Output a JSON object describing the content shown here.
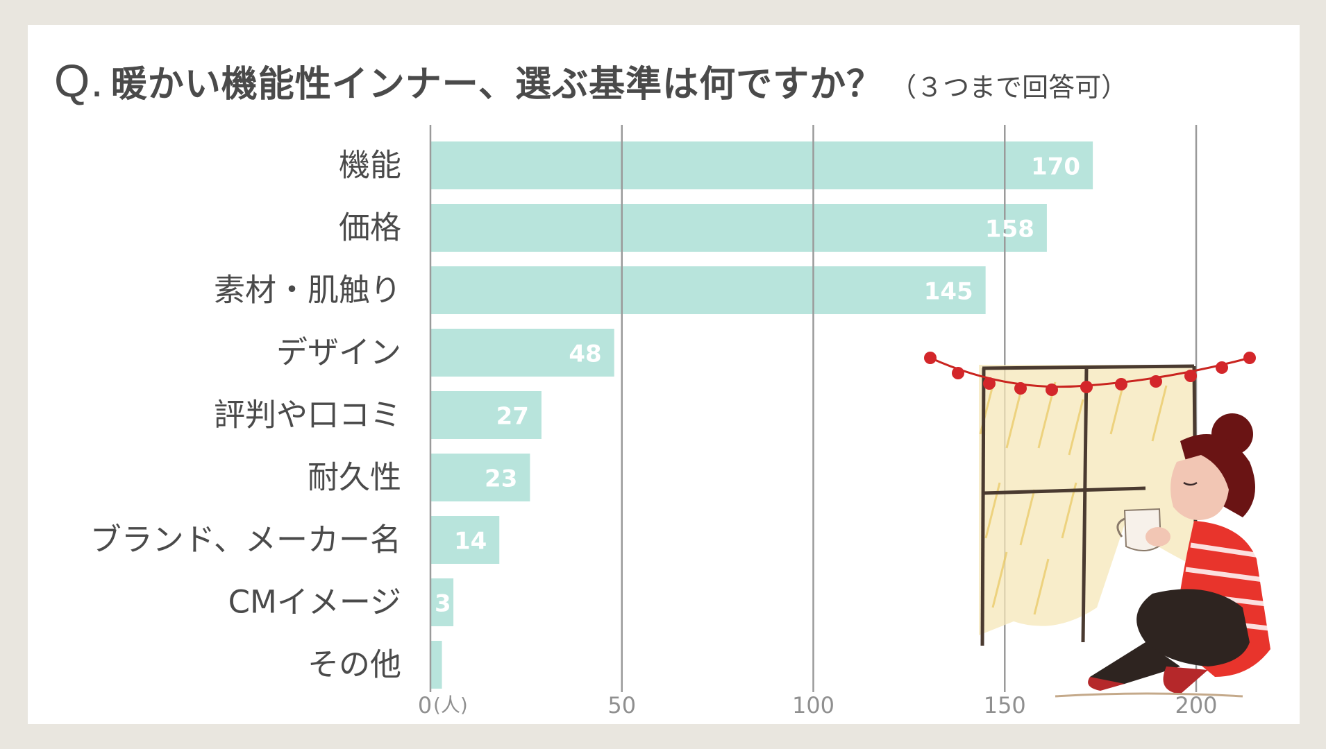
{
  "question": {
    "prefix": "Q.",
    "text": "暖かい機能性インナー、選ぶ基準は何ですか？",
    "note": "（３つまで回答可）"
  },
  "colors": {
    "bar": "#b8e4dc",
    "grid": "#9a9a9a",
    "background": "#e9e6df",
    "card": "#ffffff"
  },
  "chart_data": {
    "type": "bar",
    "orientation": "horizontal",
    "title": "暖かい機能性インナー、選ぶ基準は何ですか？（３つまで回答可）",
    "categories": [
      "機能",
      "価格",
      "素材・肌触り",
      "デザイン",
      "評判や口コミ",
      "耐久性",
      "ブランド、メーカー名",
      "CMイメージ",
      "その他"
    ],
    "values": [
      170,
      158,
      145,
      48,
      27,
      23,
      14,
      3,
      0
    ],
    "value_labels": [
      "170",
      "158",
      "145",
      "48",
      "27",
      "23",
      "14",
      "3",
      ""
    ],
    "display_values": [
      173,
      161,
      145,
      48,
      29,
      26,
      18,
      6,
      3
    ],
    "xlim": [
      0,
      200
    ],
    "xticks": [
      0,
      50,
      100,
      150,
      200
    ],
    "xtick_labels": [
      "0",
      "50",
      "100",
      "150",
      "200"
    ],
    "unit_label": "(人)",
    "grid": true,
    "legend": "none"
  },
  "illustration": {
    "description_icon": "woman-drinking-by-window-icon"
  }
}
